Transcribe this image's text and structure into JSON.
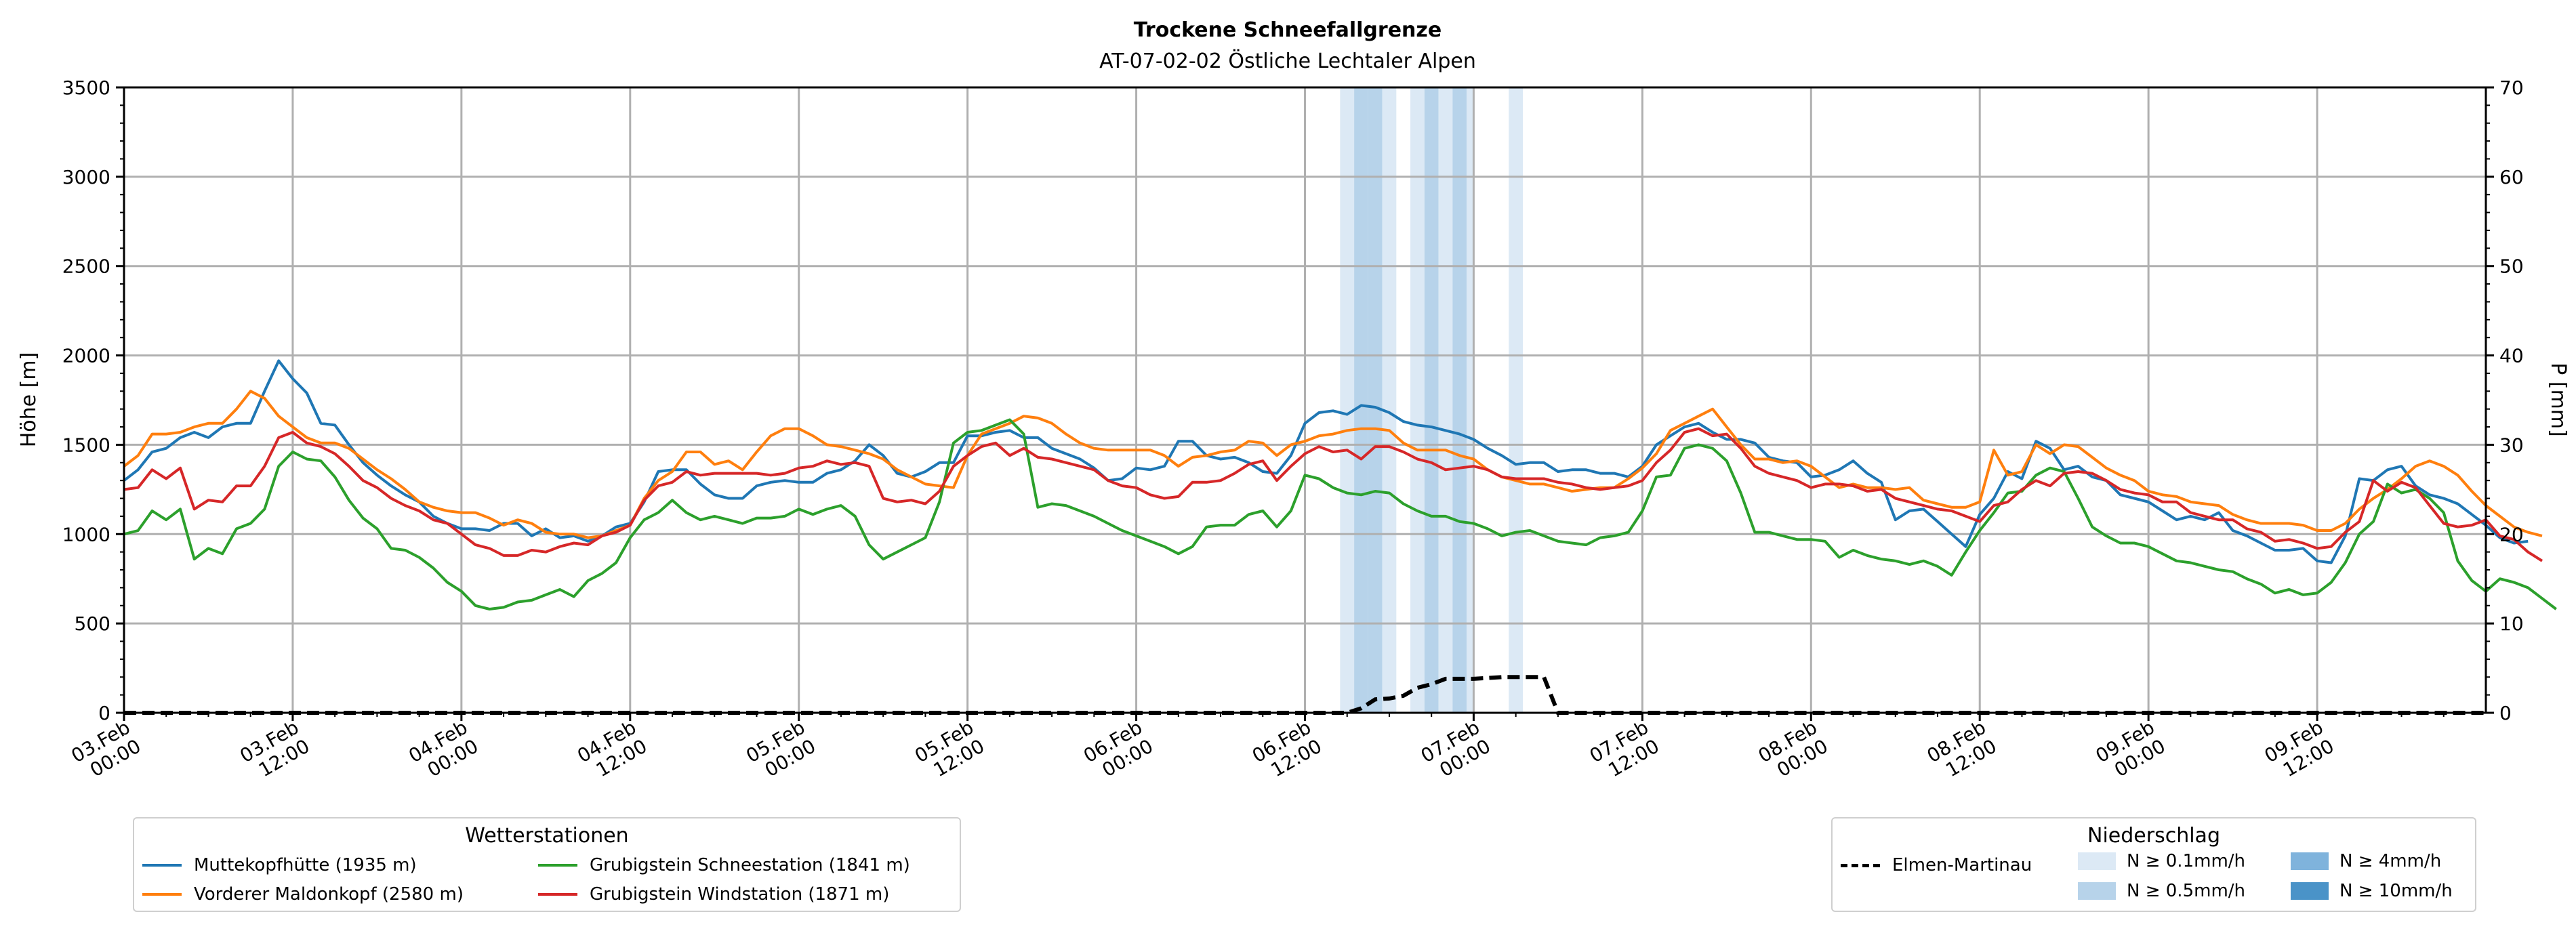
{
  "chart_data": {
    "type": "line",
    "title": "Trockene Schneefallgrenze",
    "subtitle": "AT-07-02-02 Östliche Lechtaler Alpen",
    "ylabel": "Höhe [m]",
    "y2label": "P [mm]",
    "ylim": [
      0,
      3500
    ],
    "y2lim": [
      0,
      70
    ],
    "yticks": [
      "0",
      "500",
      "1000",
      "1500",
      "2000",
      "2500",
      "3000",
      "3500"
    ],
    "y2ticks": [
      "0",
      "10",
      "20",
      "30",
      "40",
      "50",
      "60",
      "70"
    ],
    "x_range_hours": [
      0,
      168
    ],
    "x_step_hours": 1,
    "xticks": [
      {
        "h": 0,
        "day": "03.Feb",
        "time": "00:00"
      },
      {
        "h": 12,
        "day": "03.Feb",
        "time": "12:00"
      },
      {
        "h": 24,
        "day": "04.Feb",
        "time": "00:00"
      },
      {
        "h": 36,
        "day": "04.Feb",
        "time": "12:00"
      },
      {
        "h": 48,
        "day": "05.Feb",
        "time": "00:00"
      },
      {
        "h": 60,
        "day": "05.Feb",
        "time": "12:00"
      },
      {
        "h": 72,
        "day": "06.Feb",
        "time": "00:00"
      },
      {
        "h": 84,
        "day": "06.Feb",
        "time": "12:00"
      },
      {
        "h": 96,
        "day": "07.Feb",
        "time": "00:00"
      },
      {
        "h": 108,
        "day": "07.Feb",
        "time": "12:00"
      },
      {
        "h": 120,
        "day": "08.Feb",
        "time": "00:00"
      },
      {
        "h": 132,
        "day": "08.Feb",
        "time": "12:00"
      },
      {
        "h": 144,
        "day": "09.Feb",
        "time": "00:00"
      },
      {
        "h": 156,
        "day": "09.Feb",
        "time": "12:00"
      }
    ],
    "grid": true,
    "series": [
      {
        "name": "Muttekopfhütte (1935 m)",
        "color": "#1f77b4",
        "values": [
          1300,
          1360,
          1460,
          1480,
          1540,
          1570,
          1540,
          1600,
          1620,
          1620,
          1800,
          1970,
          1870,
          1790,
          1620,
          1610,
          1500,
          1400,
          1330,
          1270,
          1220,
          1180,
          1100,
          1060,
          1030,
          1030,
          1020,
          1060,
          1060,
          990,
          1030,
          980,
          990,
          960,
          990,
          1040,
          1060,
          1180,
          1350,
          1360,
          1360,
          1280,
          1220,
          1200,
          1200,
          1270,
          1290,
          1300,
          1290,
          1290,
          1340,
          1360,
          1410,
          1500,
          1440,
          1340,
          1320,
          1350,
          1400,
          1400,
          1550,
          1550,
          1570,
          1580,
          1540,
          1540,
          1480,
          1450,
          1420,
          1370,
          1300,
          1310,
          1370,
          1360,
          1380,
          1520,
          1520,
          1440,
          1420,
          1430,
          1400,
          1350,
          1340,
          1440,
          1620,
          1680,
          1690,
          1670,
          1720,
          1710,
          1680,
          1630,
          1610,
          1600,
          1580,
          1560,
          1530,
          1480,
          1440,
          1390,
          1400,
          1400,
          1350,
          1360,
          1360,
          1340,
          1340,
          1320,
          1380,
          1500,
          1550,
          1600,
          1620,
          1570,
          1530,
          1530,
          1510,
          1430,
          1410,
          1400,
          1320,
          1330,
          1360,
          1410,
          1340,
          1290,
          1080,
          1130,
          1140,
          1070,
          1000,
          930,
          1110,
          1200,
          1350,
          1310,
          1520,
          1480,
          1360,
          1380,
          1320,
          1300,
          1220,
          1200,
          1180,
          1130,
          1080,
          1100,
          1080,
          1120,
          1020,
          990,
          950,
          910,
          910,
          920,
          850,
          840,
          990,
          1310,
          1300,
          1360,
          1380,
          1270,
          1220,
          1200,
          1170,
          1110,
          1050,
          980,
          950,
          960
        ]
      },
      {
        "name": "Vorderer Maldonkopf (2580 m)",
        "color": "#ff7f0e",
        "values": [
          1380,
          1440,
          1560,
          1560,
          1570,
          1600,
          1620,
          1620,
          1700,
          1800,
          1760,
          1660,
          1600,
          1540,
          1510,
          1510,
          1480,
          1420,
          1360,
          1310,
          1250,
          1180,
          1150,
          1130,
          1120,
          1120,
          1090,
          1050,
          1080,
          1060,
          1010,
          1000,
          1000,
          980,
          990,
          1020,
          1050,
          1200,
          1300,
          1350,
          1460,
          1460,
          1390,
          1410,
          1360,
          1460,
          1550,
          1590,
          1590,
          1550,
          1500,
          1490,
          1470,
          1450,
          1420,
          1360,
          1320,
          1280,
          1270,
          1260,
          1440,
          1560,
          1590,
          1620,
          1660,
          1650,
          1620,
          1560,
          1510,
          1480,
          1470,
          1470,
          1470,
          1470,
          1440,
          1380,
          1430,
          1440,
          1460,
          1470,
          1520,
          1510,
          1440,
          1500,
          1520,
          1550,
          1560,
          1580,
          1590,
          1590,
          1580,
          1510,
          1470,
          1470,
          1470,
          1440,
          1420,
          1360,
          1320,
          1300,
          1280,
          1280,
          1260,
          1240,
          1250,
          1260,
          1260,
          1310,
          1370,
          1450,
          1580,
          1620,
          1660,
          1700,
          1600,
          1500,
          1420,
          1420,
          1400,
          1410,
          1380,
          1320,
          1260,
          1280,
          1260,
          1260,
          1250,
          1260,
          1190,
          1170,
          1150,
          1150,
          1180,
          1470,
          1330,
          1350,
          1500,
          1450,
          1500,
          1490,
          1430,
          1370,
          1330,
          1300,
          1240,
          1220,
          1210,
          1180,
          1170,
          1160,
          1110,
          1080,
          1060,
          1060,
          1060,
          1050,
          1020,
          1020,
          1060,
          1140,
          1200,
          1250,
          1310,
          1380,
          1410,
          1380,
          1330,
          1240,
          1160,
          1100,
          1040,
          1010,
          990
        ]
      },
      {
        "name": "Grubigstein Schneestation (1841 m)",
        "color": "#2ca02c",
        "values": [
          1000,
          1020,
          1130,
          1080,
          1140,
          860,
          920,
          890,
          1030,
          1060,
          1140,
          1380,
          1460,
          1420,
          1410,
          1320,
          1190,
          1090,
          1030,
          920,
          910,
          870,
          810,
          730,
          680,
          600,
          580,
          590,
          620,
          630,
          660,
          690,
          650,
          740,
          780,
          840,
          980,
          1080,
          1120,
          1190,
          1120,
          1080,
          1100,
          1080,
          1060,
          1090,
          1090,
          1100,
          1140,
          1110,
          1140,
          1160,
          1100,
          940,
          860,
          900,
          940,
          980,
          1180,
          1510,
          1570,
          1580,
          1610,
          1640,
          1560,
          1150,
          1170,
          1160,
          1130,
          1100,
          1060,
          1020,
          990,
          960,
          930,
          890,
          930,
          1040,
          1050,
          1050,
          1110,
          1130,
          1040,
          1130,
          1330,
          1310,
          1260,
          1230,
          1220,
          1240,
          1230,
          1170,
          1130,
          1100,
          1100,
          1070,
          1060,
          1030,
          990,
          1010,
          1020,
          990,
          960,
          950,
          940,
          980,
          990,
          1010,
          1130,
          1320,
          1330,
          1480,
          1500,
          1480,
          1410,
          1230,
          1010,
          1010,
          990,
          970,
          970,
          960,
          870,
          910,
          880,
          860,
          850,
          830,
          850,
          820,
          770,
          900,
          1020,
          1120,
          1230,
          1240,
          1330,
          1370,
          1350,
          1200,
          1040,
          990,
          950,
          950,
          930,
          890,
          850,
          840,
          820,
          800,
          790,
          750,
          720,
          670,
          690,
          660,
          670,
          730,
          840,
          1000,
          1070,
          1280,
          1230,
          1250,
          1200,
          1120,
          850,
          740,
          680,
          750,
          730,
          700,
          640,
          580
        ]
      },
      {
        "name": "Grubigstein Windstation (1871 m)",
        "color": "#d62728",
        "values": [
          1250,
          1260,
          1360,
          1310,
          1370,
          1140,
          1190,
          1180,
          1270,
          1270,
          1380,
          1540,
          1570,
          1510,
          1490,
          1450,
          1380,
          1300,
          1260,
          1200,
          1160,
          1130,
          1080,
          1060,
          1000,
          940,
          920,
          880,
          880,
          910,
          900,
          930,
          950,
          940,
          990,
          1010,
          1050,
          1190,
          1270,
          1290,
          1350,
          1330,
          1340,
          1340,
          1340,
          1340,
          1330,
          1340,
          1370,
          1380,
          1410,
          1390,
          1400,
          1380,
          1200,
          1180,
          1190,
          1170,
          1240,
          1380,
          1440,
          1490,
          1510,
          1440,
          1480,
          1430,
          1420,
          1400,
          1380,
          1360,
          1300,
          1270,
          1260,
          1220,
          1200,
          1210,
          1290,
          1290,
          1300,
          1340,
          1390,
          1410,
          1300,
          1380,
          1450,
          1490,
          1460,
          1470,
          1420,
          1490,
          1490,
          1460,
          1420,
          1400,
          1360,
          1370,
          1380,
          1360,
          1320,
          1310,
          1310,
          1310,
          1290,
          1280,
          1260,
          1250,
          1260,
          1270,
          1300,
          1400,
          1470,
          1570,
          1590,
          1550,
          1560,
          1480,
          1380,
          1340,
          1320,
          1300,
          1260,
          1280,
          1280,
          1270,
          1240,
          1250,
          1200,
          1180,
          1160,
          1140,
          1130,
          1100,
          1070,
          1160,
          1180,
          1250,
          1300,
          1270,
          1340,
          1350,
          1340,
          1300,
          1250,
          1230,
          1220,
          1180,
          1180,
          1120,
          1100,
          1080,
          1080,
          1030,
          1010,
          960,
          970,
          950,
          920,
          930,
          1010,
          1070,
          1300,
          1240,
          1290,
          1260,
          1160,
          1060,
          1040,
          1050,
          1080,
          990,
          970,
          900,
          850
        ]
      }
    ],
    "precip_series": {
      "name": "Elmen-Martinau",
      "color": "#000000",
      "points": [
        [
          0,
          0
        ],
        [
          87,
          0
        ],
        [
          88,
          0.5
        ],
        [
          89,
          1.5
        ],
        [
          90,
          1.6
        ],
        [
          91,
          1.9
        ],
        [
          92,
          2.8
        ],
        [
          93,
          3.2
        ],
        [
          94,
          3.8
        ],
        [
          95,
          3.8
        ],
        [
          96,
          3.8
        ],
        [
          97,
          3.9
        ],
        [
          98,
          4.0
        ],
        [
          99,
          4.0
        ],
        [
          100,
          4.0
        ],
        [
          101,
          4.0
        ],
        [
          102,
          0
        ],
        [
          168,
          0
        ]
      ]
    },
    "precip_bands": [
      {
        "from": 86.5,
        "to": 87.5,
        "level": "N ≥ 0.1mm/h"
      },
      {
        "from": 87.5,
        "to": 88.5,
        "level": "N ≥ 0.5mm/h"
      },
      {
        "from": 88.5,
        "to": 89.5,
        "level": "N ≥ 0.5mm/h"
      },
      {
        "from": 89.5,
        "to": 90.5,
        "level": "N ≥ 0.1mm/h"
      },
      {
        "from": 91.5,
        "to": 92.5,
        "level": "N ≥ 0.1mm/h"
      },
      {
        "from": 92.5,
        "to": 93.5,
        "level": "N ≥ 0.5mm/h"
      },
      {
        "from": 93.5,
        "to": 94.5,
        "level": "N ≥ 0.1mm/h"
      },
      {
        "from": 94.5,
        "to": 95.5,
        "level": "N ≥ 0.5mm/h"
      },
      {
        "from": 95.5,
        "to": 96.0,
        "level": "N ≥ 0.1mm/h"
      },
      {
        "from": 98.5,
        "to": 99.5,
        "level": "N ≥ 0.1mm/h"
      }
    ],
    "legend_stations": {
      "title": "Wetterstationen",
      "placement": "bottom-left",
      "entries": [
        "Muttekopfhütte (1935 m)",
        "Vorderer Maldonkopf (2580 m)",
        "Grubigstein Schneestation (1841 m)",
        "Grubigstein Windstation (1871 m)"
      ]
    },
    "legend_precip": {
      "title": "Niederschlag",
      "placement": "bottom-right",
      "line_label": "Elmen-Martinau",
      "levels": [
        {
          "label": "N ≥ 0.1mm/h",
          "color": "#dce9f5"
        },
        {
          "label": "N ≥ 0.5mm/h",
          "color": "#b7d3ea"
        },
        {
          "label": "N ≥ 4mm/h",
          "color": "#7fb3dc"
        },
        {
          "label": "N ≥ 10mm/h",
          "color": "#4a93c8"
        }
      ]
    }
  }
}
